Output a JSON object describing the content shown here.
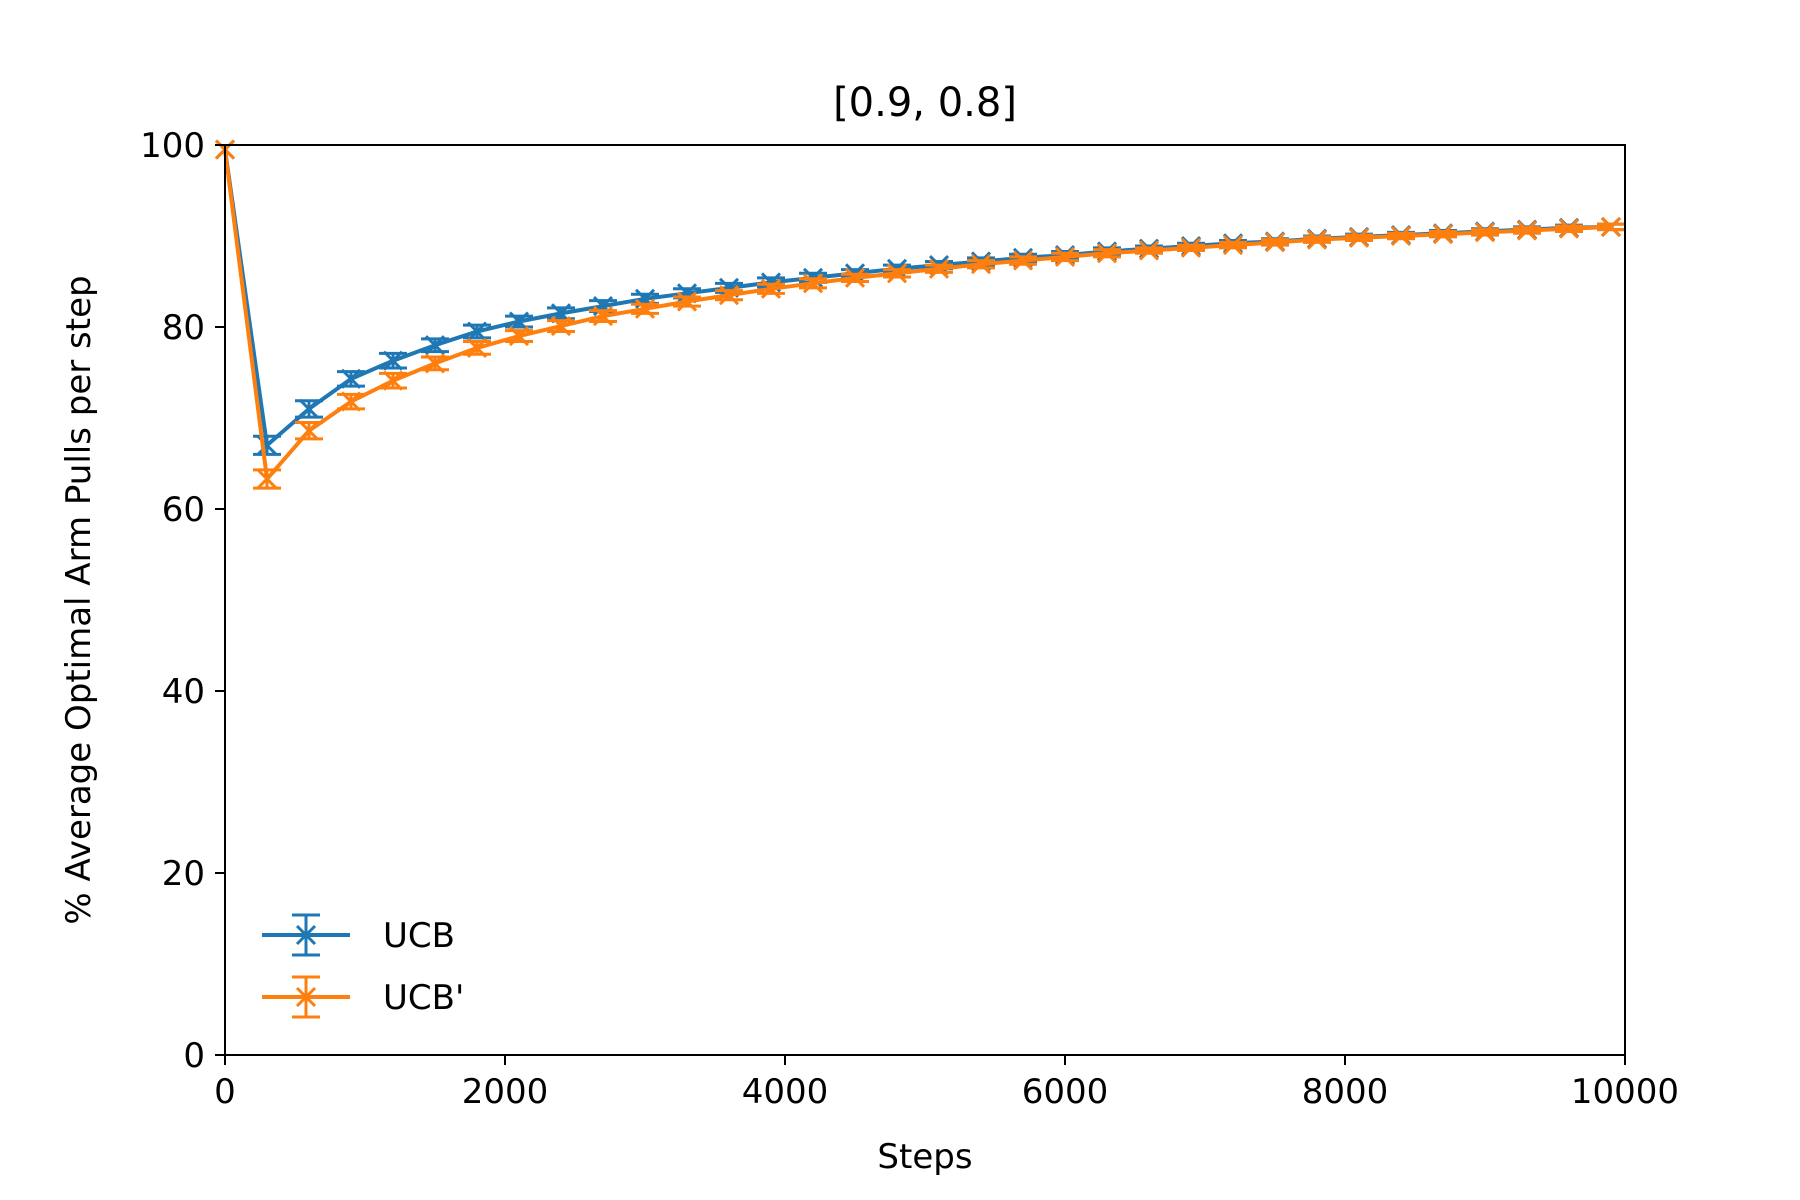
{
  "chart_data": {
    "type": "line",
    "title": "[0.9, 0.8]",
    "xlabel": "Steps",
    "ylabel": "% Average Optimal Arm Pulls per step",
    "xlim": [
      0,
      10000
    ],
    "ylim": [
      0,
      100
    ],
    "xticks": [
      0,
      2000,
      4000,
      6000,
      8000,
      10000
    ],
    "yticks": [
      0,
      20,
      40,
      60,
      80,
      100
    ],
    "grid": false,
    "legend_position": "lower-left",
    "x": [
      0,
      300,
      600,
      900,
      1200,
      1500,
      1800,
      2100,
      2400,
      2700,
      3000,
      3300,
      3600,
      3900,
      4200,
      4500,
      4800,
      5100,
      5400,
      5700,
      6000,
      6300,
      6600,
      6900,
      7200,
      7500,
      7800,
      8100,
      8400,
      8700,
      9000,
      9300,
      9600,
      9900
    ],
    "series": [
      {
        "name": "UCB",
        "color": "#1f77b4",
        "marker": "x",
        "values": [
          99.5,
          67.0,
          71.0,
          74.3,
          76.3,
          78.0,
          79.5,
          80.6,
          81.5,
          82.3,
          83.1,
          83.7,
          84.3,
          84.9,
          85.4,
          85.9,
          86.4,
          86.8,
          87.2,
          87.6,
          87.9,
          88.3,
          88.6,
          88.9,
          89.2,
          89.4,
          89.7,
          89.9,
          90.1,
          90.3,
          90.5,
          90.7,
          90.9,
          91.0
        ],
        "error": [
          0,
          1.0,
          0.9,
          0.8,
          0.8,
          0.7,
          0.7,
          0.6,
          0.6,
          0.6,
          0.5,
          0.5,
          0.5,
          0.5,
          0.5,
          0.4,
          0.4,
          0.4,
          0.4,
          0.4,
          0.4,
          0.4,
          0.3,
          0.3,
          0.3,
          0.3,
          0.3,
          0.3,
          0.3,
          0.3,
          0.3,
          0.3,
          0.3,
          0.3
        ]
      },
      {
        "name": "UCB'",
        "color": "#ff7f0e",
        "marker": "x",
        "values": [
          99.5,
          63.3,
          68.6,
          71.8,
          74.1,
          76.0,
          77.7,
          79.0,
          80.1,
          81.2,
          82.0,
          82.8,
          83.5,
          84.2,
          84.8,
          85.4,
          85.9,
          86.4,
          86.9,
          87.3,
          87.7,
          88.1,
          88.4,
          88.7,
          89.0,
          89.3,
          89.6,
          89.8,
          90.0,
          90.2,
          90.4,
          90.6,
          90.8,
          91.0
        ],
        "error": [
          0,
          1.0,
          0.9,
          0.8,
          0.8,
          0.7,
          0.7,
          0.6,
          0.6,
          0.6,
          0.5,
          0.5,
          0.5,
          0.5,
          0.5,
          0.4,
          0.4,
          0.4,
          0.4,
          0.4,
          0.4,
          0.4,
          0.3,
          0.3,
          0.3,
          0.3,
          0.3,
          0.3,
          0.3,
          0.3,
          0.3,
          0.3,
          0.3,
          0.3
        ]
      }
    ]
  }
}
